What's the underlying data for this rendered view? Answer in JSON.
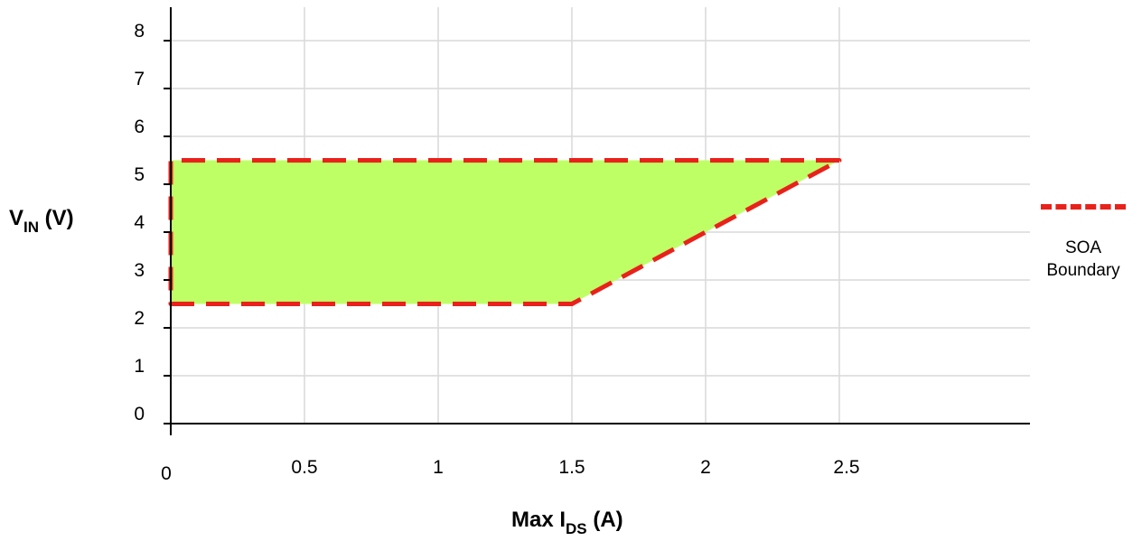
{
  "chart_data": {
    "type": "area",
    "title": "",
    "ylabel": {
      "main": "V",
      "sub": "IN",
      "tail": " (V)"
    },
    "xlabel": {
      "pre": "Max I",
      "sub": "DS",
      "tail": " (A)"
    },
    "xlim": [
      0,
      2.5
    ],
    "ylim": [
      0,
      8
    ],
    "x_ticks": [
      "0",
      "0.5",
      "1",
      "1.5",
      "2",
      "2.5"
    ],
    "y_ticks": [
      "0",
      "1",
      "2",
      "3",
      "4",
      "5",
      "6",
      "7",
      "8"
    ],
    "grid": true,
    "series": [
      {
        "name": "SOA Boundary",
        "style": "dashed",
        "fill": "#bfff66",
        "points": [
          {
            "x": 0,
            "y": 2.5
          },
          {
            "x": 1.5,
            "y": 2.5
          },
          {
            "x": 2.5,
            "y": 5.5
          },
          {
            "x": 0,
            "y": 5.5
          },
          {
            "x": 0,
            "y": 2.5
          }
        ]
      }
    ],
    "legend_position": "right",
    "colors": {
      "boundary": "#e8221b",
      "fill": "#bfff66",
      "grid": "#d9d9d9"
    }
  },
  "legend": {
    "label": "SOA\nBoundary"
  }
}
